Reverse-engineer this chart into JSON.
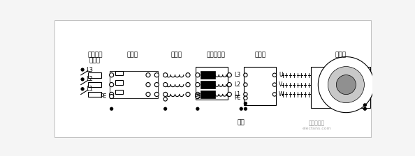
{
  "bg_color": "#f5f5f5",
  "line_color": "#000000",
  "labels": {
    "isolation_switch": "隔离开关",
    "contactor": "接触器",
    "filter": "滤波器",
    "line_reactor": "进线电抗器",
    "inverter": "变频器",
    "motor": "电动机",
    "fuse": "熔断器",
    "ground": "接地",
    "pe": "PE"
  },
  "phase_labels": [
    "L3",
    "L2",
    "L1"
  ],
  "inv_in_labels": [
    "L3",
    "L2",
    "L1",
    "PE"
  ],
  "inv_out_labels": [
    "U",
    "V",
    "W"
  ],
  "watermark": "电子发烧友",
  "site": "elecfans.com",
  "fig_width": 5.94,
  "fig_height": 2.24,
  "dpi": 100
}
